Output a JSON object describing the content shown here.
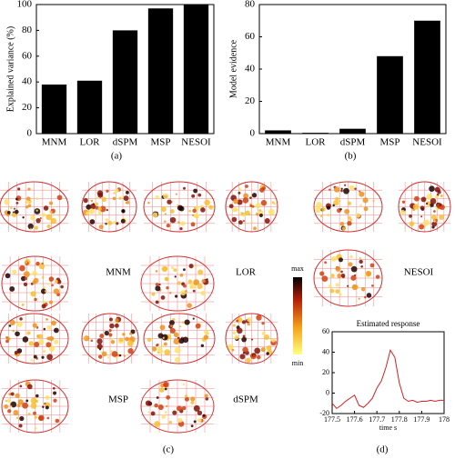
{
  "chart_data": [
    {
      "type": "bar",
      "ylabel": "Explained variance (%)",
      "categories": [
        "MNM",
        "LOR",
        "dSPM",
        "MSP",
        "NESOI"
      ],
      "values": [
        38,
        41,
        80,
        97,
        100
      ],
      "color": "#000000",
      "ylim": [
        0,
        100
      ],
      "yticks": [
        0,
        20,
        40,
        60,
        80,
        100
      ],
      "caption": "(a)"
    },
    {
      "type": "bar",
      "ylabel": "Model evidence",
      "categories": [
        "MNM",
        "LOR",
        "dSPM",
        "MSP",
        "NESOI"
      ],
      "values": [
        2,
        0.5,
        3,
        48,
        70
      ],
      "color": "#000000",
      "ylim": [
        0,
        80
      ],
      "yticks": [
        0,
        20,
        40,
        60,
        80
      ],
      "caption": "(b)"
    },
    {
      "type": "line",
      "title": "Estimated response",
      "xlabel": "time  s",
      "caption": "(d)",
      "x": [
        177.5,
        177.52,
        177.54,
        177.56,
        177.58,
        177.6,
        177.62,
        177.64,
        177.66,
        177.68,
        177.7,
        177.72,
        177.74,
        177.76,
        177.78,
        177.8,
        177.82,
        177.84,
        177.86,
        177.88,
        177.9,
        177.92,
        177.94,
        177.96,
        177.98,
        178
      ],
      "series": [
        {
          "color": "#d42020",
          "values": [
            -10,
            -15,
            -12,
            -8,
            -5,
            -2,
            -12,
            -14,
            -10,
            -5,
            5,
            12,
            25,
            42,
            35,
            10,
            -5,
            -8,
            -7,
            -9,
            -8,
            -8,
            -7,
            -8,
            -7,
            -7
          ]
        }
      ],
      "xlim": [
        177.5,
        178
      ],
      "xticks": [
        177.5,
        177.6,
        177.7,
        177.8,
        177.9,
        178
      ],
      "ylim": [
        -20,
        60
      ],
      "yticks": [
        -20,
        0,
        20,
        40,
        60
      ]
    }
  ],
  "figure": {
    "caption": "(c)",
    "brain_labels": [
      "MNM",
      "LOR",
      "NESOI",
      "MSP",
      "dSPM"
    ],
    "colorbar": {
      "max": "max",
      "min": "min"
    }
  }
}
